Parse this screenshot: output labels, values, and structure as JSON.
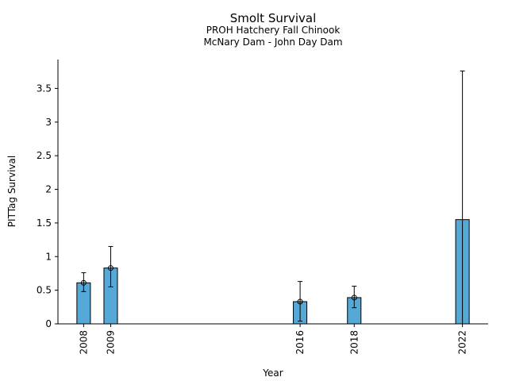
{
  "chart_data": {
    "type": "bar",
    "title": "Smolt Survival",
    "subtitle_lines": [
      "PROH Hatchery Fall Chinook",
      "McNary Dam - John Day Dam"
    ],
    "xlabel": "Year",
    "ylabel": "PITTag Survival",
    "x": [
      2008,
      2009,
      2016,
      2018,
      2022
    ],
    "x_tick_labels": [
      "2008",
      "2009",
      "2016",
      "2018",
      "2022"
    ],
    "values": [
      0.61,
      0.83,
      0.33,
      0.39,
      1.55
    ],
    "error_low": [
      0.48,
      0.55,
      0.04,
      0.24,
      null
    ],
    "error_high": [
      0.76,
      1.15,
      0.63,
      0.56,
      3.76
    ],
    "show_point_marker": [
      true,
      true,
      true,
      true,
      false
    ],
    "ylim": [
      0,
      3.93
    ],
    "xlim": [
      2007.05,
      2022.95
    ],
    "y_ticks": [
      0,
      0.5,
      1,
      1.5,
      2,
      2.5,
      3,
      3.5
    ],
    "y_tick_labels": [
      "0",
      "0.5",
      "1",
      "1.5",
      "2",
      "2.5",
      "3",
      "3.5"
    ],
    "bar_width_years": 0.5,
    "bar_color": "#56a9d6",
    "edge_color": "#000000",
    "grid": false,
    "legend": "none"
  }
}
